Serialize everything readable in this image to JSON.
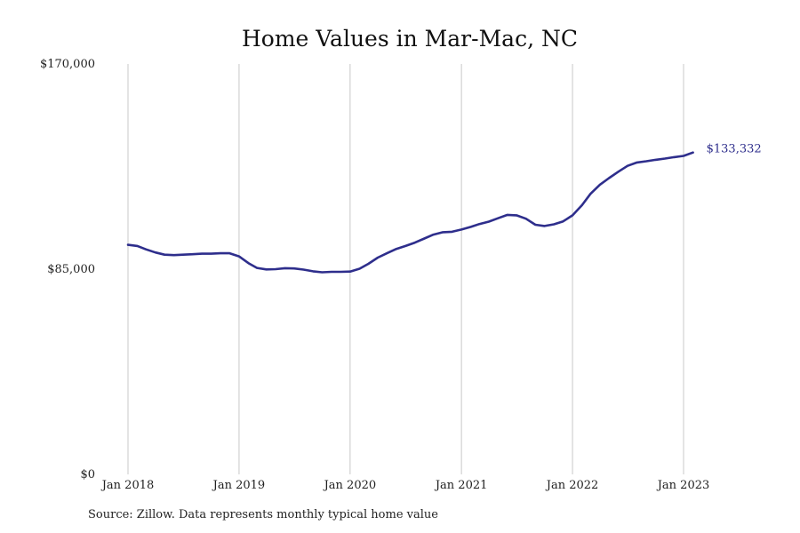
{
  "chart_data": {
    "type": "line",
    "title": "Home Values in Mar-Mac, NC",
    "xlabel": "",
    "ylabel": "",
    "ylim": [
      0,
      170000
    ],
    "y_ticks": [
      0,
      85000,
      170000
    ],
    "y_tick_labels": [
      "$0",
      "$85,000",
      "$170,000"
    ],
    "x_ticks": [
      "2018-01",
      "2019-01",
      "2020-01",
      "2021-01",
      "2022-01",
      "2023-01"
    ],
    "x_tick_labels": [
      "Jan 2018",
      "Jan 2019",
      "Jan 2020",
      "Jan 2021",
      "Jan 2022",
      "Jan 2023"
    ],
    "grid": {
      "vertical": true,
      "horizontal": false
    },
    "line_color": "#2e2e8c",
    "grid_color": "#c8c8c8",
    "end_label": "$133,332",
    "series": [
      {
        "x": [
          "2018-01",
          "2018-02",
          "2018-03",
          "2018-04",
          "2018-05",
          "2018-06",
          "2018-07",
          "2018-08",
          "2018-09",
          "2018-10",
          "2018-11",
          "2018-12",
          "2019-01",
          "2019-02",
          "2019-03",
          "2019-04",
          "2019-05",
          "2019-06",
          "2019-07",
          "2019-08",
          "2019-09",
          "2019-10",
          "2019-11",
          "2019-12",
          "2020-01",
          "2020-02",
          "2020-03",
          "2020-04",
          "2020-05",
          "2020-06",
          "2020-07",
          "2020-08",
          "2020-09",
          "2020-10",
          "2020-11",
          "2020-12",
          "2021-01",
          "2021-02",
          "2021-03",
          "2021-04",
          "2021-05",
          "2021-06",
          "2021-07",
          "2021-08",
          "2021-09",
          "2021-10",
          "2021-11",
          "2021-12",
          "2022-01",
          "2022-02",
          "2022-03",
          "2022-04",
          "2022-05",
          "2022-06",
          "2022-07",
          "2022-08",
          "2022-09",
          "2022-10",
          "2022-11",
          "2022-12",
          "2023-01",
          "2023-02"
        ],
        "values": [
          95100,
          94600,
          93200,
          91900,
          91000,
          90800,
          91000,
          91200,
          91400,
          91400,
          91600,
          91600,
          90300,
          87500,
          85500,
          84900,
          85000,
          85400,
          85300,
          84800,
          84100,
          83700,
          83900,
          83900,
          84000,
          85200,
          87200,
          89800,
          91600,
          93400,
          94600,
          96000,
          97700,
          99300,
          100300,
          100500,
          101400,
          102500,
          103700,
          104700,
          106100,
          107500,
          107300,
          105900,
          103400,
          102900,
          103600,
          104800,
          107300,
          111500,
          116200,
          120000,
          122700,
          125400,
          127800,
          129200,
          129700,
          130300,
          130800,
          131400,
          131900,
          133332
        ]
      }
    ]
  },
  "source": "Source: Zillow. Data represents monthly typical home value"
}
